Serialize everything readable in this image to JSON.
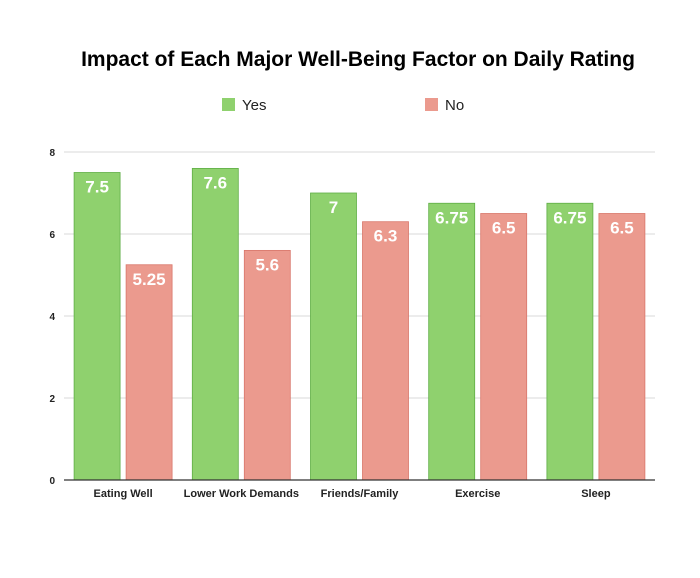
{
  "chart_data": {
    "type": "bar",
    "title": "Impact of Each Major Well-Being Factor on Daily Rating",
    "xlabel": "",
    "ylabel": "",
    "categories": [
      "Eating Well",
      "Lower Work Demands",
      "Friends/Family",
      "Exercise",
      "Sleep"
    ],
    "series": [
      {
        "name": "Yes",
        "color": "#8fd16e",
        "edge_color": "#5fae45",
        "values": [
          7.5,
          7.6,
          7,
          6.75,
          6.75
        ],
        "labels": [
          "7.5",
          "7.6",
          "7",
          "6.75",
          "6.75"
        ]
      },
      {
        "name": "No",
        "color": "#eb9a8e",
        "edge_color": "#d9776b",
        "values": [
          5.25,
          5.6,
          6.3,
          6.5,
          6.5
        ],
        "labels": [
          "5.25",
          "5.6",
          "6.3",
          "6.5",
          "6.5"
        ]
      }
    ],
    "ylim": [
      0,
      8
    ],
    "y_ticks": [
      "0",
      "2",
      "4",
      "6",
      "8"
    ],
    "grid": true,
    "legend_position": "top-center",
    "colors": {
      "grid": "#d9d9d9",
      "baseline": "#333333"
    }
  }
}
